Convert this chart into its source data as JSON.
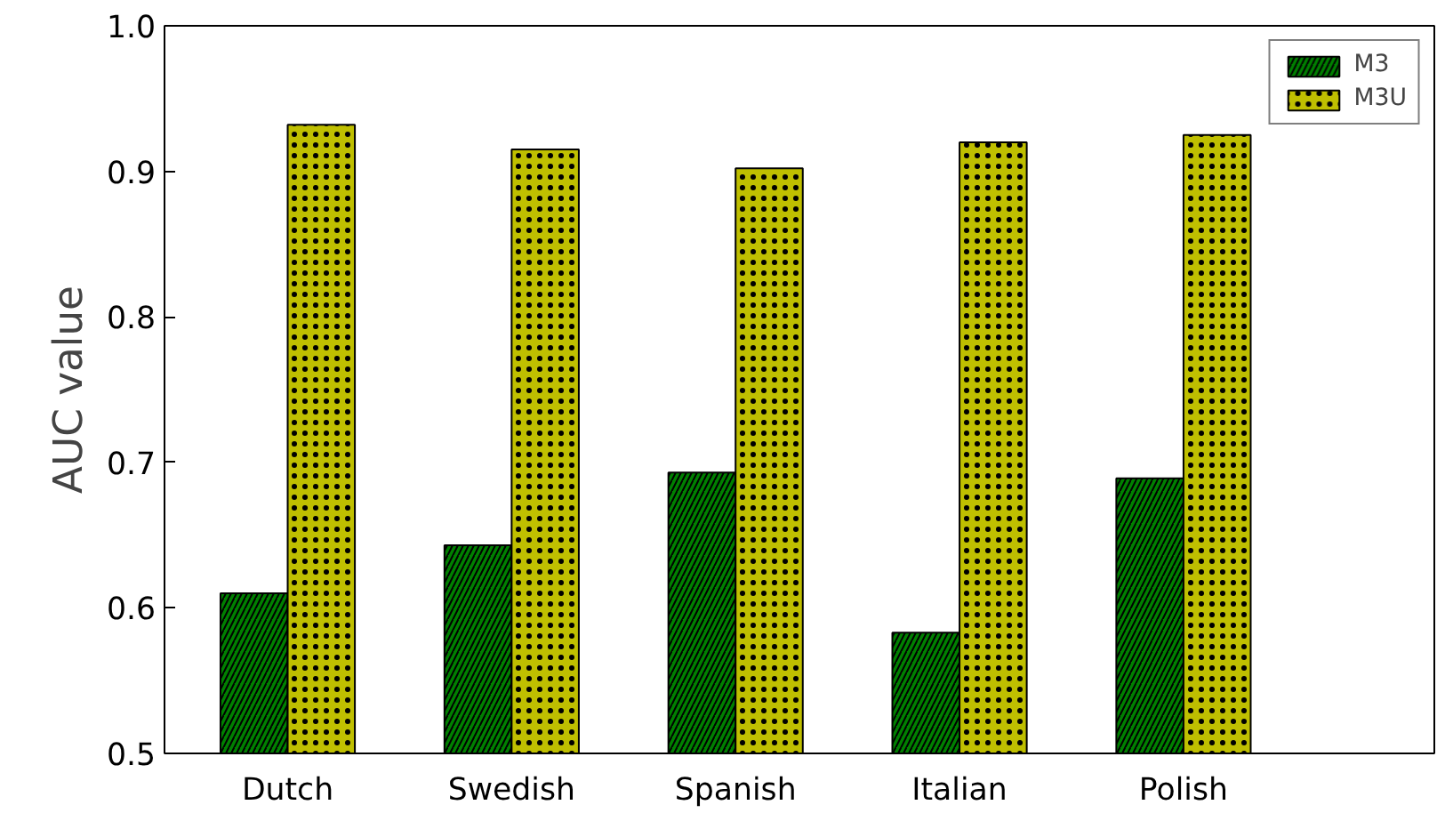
{
  "chart_data": {
    "type": "bar",
    "ylabel": "AUC value",
    "categories": [
      "Dutch",
      "Swedish",
      "Spanish",
      "Italian",
      "Polish"
    ],
    "series": [
      {
        "name": "M3",
        "color": "#008000",
        "values": [
          0.61,
          0.643,
          0.693,
          0.583,
          0.689
        ]
      },
      {
        "name": "M3U",
        "color": "#bfbf00",
        "values": [
          0.932,
          0.915,
          0.902,
          0.92,
          0.925
        ]
      }
    ],
    "ylim": [
      0.5,
      1.0
    ],
    "yticks": [
      0.5,
      0.6,
      0.7,
      0.8,
      0.9,
      {
        "value": 1.0,
        "label": "1.0"
      }
    ],
    "grid": false,
    "legend": "top right"
  }
}
